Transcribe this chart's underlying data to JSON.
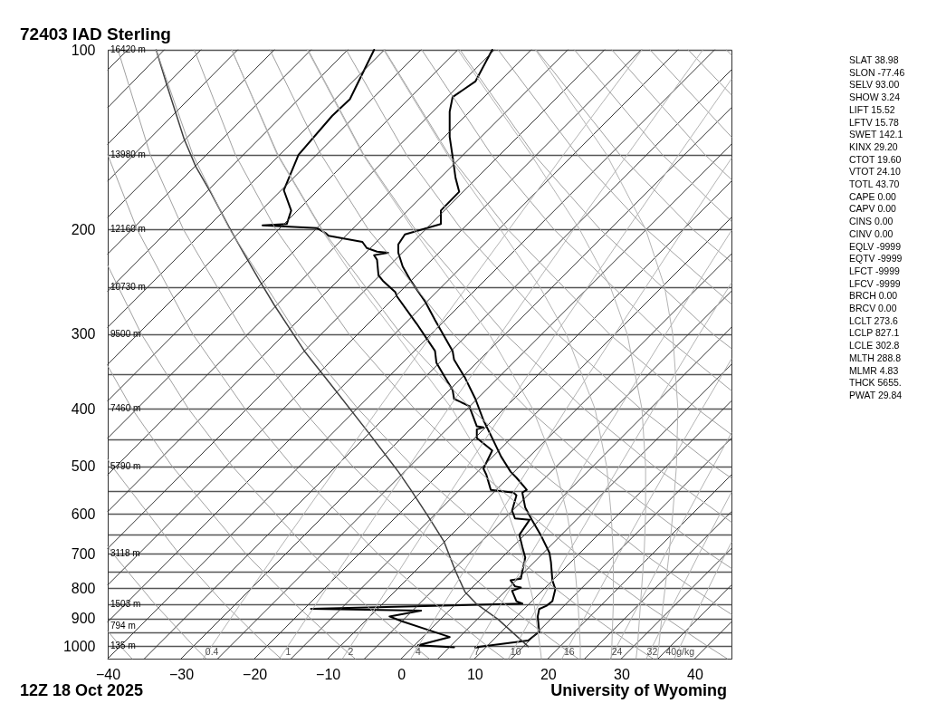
{
  "chart_data": {
    "type": "line",
    "title": "72403 IAD Sterling",
    "xlim": [
      -40,
      45
    ],
    "xticks": [
      -40,
      -30,
      -20,
      -10,
      0,
      10,
      20,
      30,
      40
    ],
    "ylim": [
      1050,
      100
    ],
    "log": "y",
    "grid": "y",
    "yticks": [
      100,
      {
        "value": 150,
        "label": null
      },
      200,
      {
        "value": 250,
        "label": null
      },
      300,
      {
        "value": 350,
        "label": null
      },
      400,
      {
        "value": 450,
        "label": null
      },
      500,
      {
        "value": 550,
        "label": null
      },
      600,
      {
        "value": 650,
        "label": null
      },
      700,
      {
        "value": 750,
        "label": null
      },
      800,
      {
        "value": 850,
        "label": null
      },
      900,
      {
        "value": 950,
        "label": null
      },
      1000
    ],
    "annotations": [
      "12Z 18 Oct 2025",
      "University of Wyoming",
      "16420 m",
      "13980 m",
      "12160 m",
      "10730 m",
      "9500 m",
      "7460 m",
      "5790 m",
      "3118 m",
      "1503 m",
      "794 m",
      "135 m",
      "SLAT 38.98",
      "SLON -77.46",
      "SELV 93.00",
      "SHOW 3.24",
      "LIFT 15.52",
      "LFTV 15.78",
      "SWET 142.1",
      "KINX 29.20",
      "CTOT 19.60",
      "VTOT 24.10",
      "TOTL 43.70",
      "CAPE 0.00",
      "CAPV 0.00",
      "CINS 0.00",
      "CINV 0.00",
      "EQLV -9999",
      "EQTV -9999",
      "LFCT -9999",
      "LFCV -9999",
      "BRCH 0.00",
      "BRCV 0.00",
      "LCLT 273.6",
      "LCLP 827.1",
      "LCLE 302.8",
      "MLTH 288.8",
      "MLMR 4.83",
      "THCK 5655.",
      "PWAT 29.84",
      {
        "text": "0.4",
        "x": -25.8,
        "y": 1000
      },
      {
        "text": "1",
        "x": -15.4,
        "y": 1000
      },
      {
        "text": "2",
        "x": -6.9,
        "y": 1000
      },
      {
        "text": "4",
        "x": 2.3,
        "y": 1000
      },
      {
        "text": "7",
        "x": 10.3,
        "y": 1000
      },
      {
        "text": "10",
        "x": 15.6,
        "y": 1000
      },
      {
        "text": "16",
        "x": 22.9,
        "y": 1000
      },
      {
        "text": "24",
        "x": 29.4,
        "y": 1000
      },
      {
        "text": "32",
        "x": 34.2,
        "y": 1000
      },
      {
        "text": "40g/kg",
        "x": 38.0,
        "y": 1000
      }
    ],
    "series": [
      {
        "color": "#000000",
        "x": [
          12.4,
          10.1,
          7.0,
          6.6,
          6.6,
          7.0,
          7.4,
          7.9,
          5.4,
          5.4,
          0.5,
          -0.4,
          -0.4,
          0.2,
          1.3,
          3.3,
          4.6,
          7.0,
          7.2,
          8.7,
          10.1,
          11.2,
          12.4,
          13.6,
          14.9,
          15.7,
          17.1,
          16.5,
          16.9,
          17.8,
          19.0,
          20.2,
          20.4,
          20.6,
          21.0,
          20.6,
          19.8,
          18.8,
          18.6,
          18.8,
          17.3,
          10.1
        ],
        "values": [
          100,
          113,
          120,
          127,
          140,
          151,
          164,
          173,
          186,
          196,
          204,
          212,
          219,
          231,
          244,
          265,
          284,
          320,
          331,
          355,
          385,
          418,
          448,
          481,
          510,
          522,
          547,
          553,
          586,
          614,
          651,
          698,
          723,
          776,
          803,
          841,
          856,
          867,
          892,
          946,
          979,
          1005
        ]
      },
      {
        "color": "#000000",
        "x": [
          -3.7,
          -7.0,
          -9.4,
          -14.0,
          -16.0,
          -15.0,
          -15.6,
          -18.9,
          -11.5,
          -10.3,
          -9.9,
          -5.3,
          -4.7,
          -3.3,
          -1.8,
          -3.7,
          -3.3,
          -3.1,
          -2.5,
          -0.8,
          -0.6,
          2.1,
          4.6,
          4.8,
          6.0,
          7.0,
          7.2,
          9.3,
          9.5,
          10.3,
          11.2,
          10.3,
          10.3,
          12.4,
          11.2,
          11.6,
          12.2,
          15.3,
          15.7,
          15.1,
          15.5,
          17.5,
          16.1,
          16.5,
          16.9,
          16.5,
          16.3,
          14.9,
          15.5,
          16.3,
          15.1,
          15.7,
          16.5,
          -12.3,
          2.7,
          -1.6,
          0.0,
          3.7,
          6.6,
          2.3,
          7.2
        ],
        "values": [
          100,
          121,
          129,
          150,
          172,
          186,
          196,
          197,
          199,
          203,
          205,
          210,
          215,
          218,
          219,
          221,
          225,
          239,
          244,
          255,
          259,
          288,
          320,
          335,
          355,
          372,
          385,
          396,
          403,
          428,
          430,
          433,
          448,
          470,
          504,
          516,
          547,
          553,
          559,
          593,
          611,
          614,
          651,
          682,
          711,
          749,
          771,
          776,
          794,
          798,
          808,
          841,
          849,
          866,
          872,
          892,
          908,
          940,
          966,
          997,
          1005
        ]
      },
      {
        "color": "#404040",
        "x": [
          17.3,
          13.2,
          10.3,
          8.7,
          7.4,
          5.8,
          3.7,
          1.3,
          -0.4,
          -4.5,
          -9.0,
          -13.2,
          -17.3,
          -19.3,
          -21.4,
          -23.5,
          -25.9,
          -28.0,
          -29.6,
          -31.9,
          -33.4
        ],
        "values": [
          1002,
          902,
          851,
          812,
          749,
          667,
          607,
          547,
          510,
          438,
          372,
          320,
          268,
          244,
          220,
          198,
          174,
          157,
          141,
          115,
          100
        ]
      },
      {
        "color": "#333333",
        "x": [
          -40,
          42.7
        ],
        "values": [
          1050,
          100
        ]
      },
      {
        "color": "#333333",
        "x": [
          -35,
          45
        ],
        "values": [
          1050,
          108
        ]
      },
      {
        "color": "#333333",
        "x": [
          -30,
          45
        ],
        "values": [
          1050,
          125
        ]
      },
      {
        "color": "#333333",
        "x": [
          -25,
          45
        ],
        "values": [
          1050,
          144
        ]
      },
      {
        "color": "#333333",
        "x": [
          -20,
          45
        ],
        "values": [
          1050,
          166
        ]
      },
      {
        "color": "#333333",
        "x": [
          -15,
          45
        ],
        "values": [
          1050,
          191
        ]
      },
      {
        "color": "#333333",
        "x": [
          -10,
          45
        ],
        "values": [
          1050,
          220
        ]
      },
      {
        "color": "#333333",
        "x": [
          -5,
          45
        ],
        "values": [
          1050,
          254
        ]
      },
      {
        "color": "#333333",
        "x": [
          0,
          45
        ],
        "values": [
          1050,
          292
        ]
      },
      {
        "color": "#333333",
        "x": [
          5,
          45
        ],
        "values": [
          1050,
          337
        ]
      },
      {
        "color": "#333333",
        "x": [
          10,
          45
        ],
        "values": [
          1050,
          388
        ]
      },
      {
        "color": "#333333",
        "x": [
          15,
          45
        ],
        "values": [
          1050,
          448
        ]
      },
      {
        "color": "#333333",
        "x": [
          20,
          45
        ],
        "values": [
          1050,
          516
        ]
      },
      {
        "color": "#333333",
        "x": [
          25,
          45
        ],
        "values": [
          1050,
          595
        ]
      },
      {
        "color": "#333333",
        "x": [
          30,
          45
        ],
        "values": [
          1050,
          686
        ]
      },
      {
        "color": "#333333",
        "x": [
          35,
          45
        ],
        "values": [
          1050,
          790
        ]
      },
      {
        "color": "#333333",
        "x": [
          40,
          45
        ],
        "values": [
          1050,
          911
        ]
      },
      {
        "color": "#333333",
        "x": [
          -40,
          37.7
        ],
        "values": [
          911,
          100
        ]
      },
      {
        "color": "#333333",
        "x": [
          -40,
          32.7
        ],
        "values": [
          790,
          100
        ]
      },
      {
        "color": "#333333",
        "x": [
          -40,
          27.7
        ],
        "values": [
          686,
          100
        ]
      },
      {
        "color": "#333333",
        "x": [
          -40,
          22.7
        ],
        "values": [
          595,
          100
        ]
      },
      {
        "color": "#333333",
        "x": [
          -40,
          17.7
        ],
        "values": [
          516,
          100
        ]
      },
      {
        "color": "#333333",
        "x": [
          -40,
          12.7
        ],
        "values": [
          448,
          100
        ]
      },
      {
        "color": "#333333",
        "x": [
          -40,
          7.7
        ],
        "values": [
          388,
          100
        ]
      },
      {
        "color": "#333333",
        "x": [
          -40,
          2.7
        ],
        "values": [
          337,
          100
        ]
      },
      {
        "color": "#333333",
        "x": [
          -40,
          -2.3
        ],
        "values": [
          292,
          100
        ]
      },
      {
        "color": "#333333",
        "x": [
          -40,
          -7.3
        ],
        "values": [
          254,
          100
        ]
      },
      {
        "color": "#333333",
        "x": [
          -40,
          -12.3
        ],
        "values": [
          220,
          100
        ]
      },
      {
        "color": "#333333",
        "x": [
          -40,
          -17.3
        ],
        "values": [
          191,
          100
        ]
      },
      {
        "color": "#333333",
        "x": [
          -40,
          -22.3
        ],
        "values": [
          166,
          100
        ]
      },
      {
        "color": "#333333",
        "x": [
          -40,
          -27.3
        ],
        "values": [
          144,
          100
        ]
      },
      {
        "color": "#333333",
        "x": [
          -40,
          -32.3
        ],
        "values": [
          125,
          100
        ]
      },
      {
        "color": "#333333",
        "x": [
          -40,
          -37.3
        ],
        "values": [
          108,
          100
        ]
      },
      {
        "color": "#a0a0a0",
        "x": [
          -36.7,
          -38.3,
          -40
        ],
        "values": [
          1050,
          1000,
          944
        ]
      },
      {
        "color": "#a0a0a0",
        "x": [
          -26.6,
          -28.3,
          -33.6,
          -39.3,
          -40
        ],
        "values": [
          1050,
          1000,
          850,
          700,
          680
        ]
      },
      {
        "color": "#a0a0a0",
        "x": [
          -16.4,
          -18.3,
          -24.1,
          -30.3,
          -39.4,
          -40
        ],
        "values": [
          1050,
          1000,
          850,
          700,
          500,
          486
        ]
      },
      {
        "color": "#a0a0a0",
        "x": [
          -6.3,
          -8.3,
          -14.5,
          -21.2,
          -31.2,
          -36.7,
          -40
        ],
        "values": [
          1050,
          1000,
          850,
          700,
          500,
          400,
          339
        ]
      },
      {
        "color": "#a0a0a0",
        "x": [
          3.8,
          1.7,
          -5.0,
          -12.2,
          -23.0,
          -29.0,
          -35.4,
          -40
        ],
        "values": [
          1050,
          1000,
          850,
          700,
          500,
          400,
          300,
          230
        ]
      },
      {
        "color": "#a0a0a0",
        "x": [
          14.0,
          11.7,
          4.6,
          -3.2,
          -14.8,
          -21.3,
          -28.4,
          -36.0,
          -40
        ],
        "values": [
          1050,
          1000,
          850,
          700,
          500,
          400,
          300,
          200,
          150
        ]
      },
      {
        "color": "#a0a0a0",
        "x": [
          24.1,
          21.7,
          14.1,
          5.9,
          -6.6,
          -13.6,
          -21.3,
          -29.7,
          -34.2,
          -38.6
        ],
        "values": [
          1050,
          1000,
          850,
          700,
          500,
          400,
          300,
          200,
          150,
          100
        ]
      },
      {
        "color": "#a0a0a0",
        "x": [
          34.3,
          31.7,
          23.7,
          14.9,
          1.6,
          -5.9,
          -14.2,
          -23.4,
          -28.4,
          -33.4
        ],
        "values": [
          1050,
          1000,
          850,
          700,
          500,
          400,
          300,
          200,
          150,
          100
        ]
      },
      {
        "color": "#a0a0a0",
        "x": [
          44.4,
          41.7,
          33.2,
          23.9,
          9.8,
          1.8,
          -7.1,
          -17.1,
          -22.6,
          -28.2
        ],
        "values": [
          1050,
          1000,
          850,
          700,
          500,
          400,
          300,
          200,
          150,
          100
        ]
      },
      {
        "color": "#a0a0a0",
        "x": [
          45,
          42.8,
          33.0,
          18.0,
          9.5,
          0.0,
          -10.8,
          -16.8,
          -23.1
        ],
        "values": [
          885,
          850,
          700,
          500,
          400,
          300,
          200,
          150,
          100
        ]
      },
      {
        "color": "#a0a0a0",
        "x": [
          45,
          42.0,
          26.2,
          17.2,
          7.1,
          -4.5,
          -10.9,
          -17.9
        ],
        "values": [
          741,
          700,
          500,
          400,
          300,
          200,
          150,
          100
        ]
      },
      {
        "color": "#a0a0a0",
        "x": [
          45,
          34.5,
          24.9,
          14.2,
          1.9,
          -5.1,
          -12.7
        ],
        "values": [
          620,
          500,
          400,
          300,
          200,
          150,
          100
        ]
      },
      {
        "color": "#a0a0a0",
        "x": [
          45,
          42.7,
          32.6,
          21.3,
          8.2,
          0.7,
          -7.5
        ],
        "values": [
          523,
          500,
          400,
          300,
          200,
          150,
          100
        ]
      },
      {
        "color": "#a0a0a0",
        "x": [
          45,
          40.3,
          28.4,
          14.5,
          6.5,
          -2.3
        ],
        "values": [
          442,
          400,
          300,
          200,
          150,
          100
        ]
      },
      {
        "color": "#a0a0a0",
        "x": [
          45,
          35.5,
          20.8,
          12.3,
          2.8
        ],
        "values": [
          373,
          300,
          200,
          150,
          100
        ]
      },
      {
        "color": "#a0a0a0",
        "x": [
          45,
          42.5,
          27.1,
          18.1,
          8.0
        ],
        "values": [
          317,
          300,
          200,
          150,
          100
        ]
      },
      {
        "color": "#a0a0a0",
        "x": [
          45,
          33.4,
          24.0,
          13.2
        ],
        "values": [
          267,
          200,
          150,
          100
        ]
      },
      {
        "color": "#a0a0a0",
        "x": [
          45,
          39.7,
          29.8,
          18.4
        ],
        "values": [
          227,
          200,
          150,
          100
        ]
      },
      {
        "color": "#a0a0a0",
        "x": [
          45,
          35.6,
          23.6
        ],
        "values": [
          194,
          150,
          100
        ]
      },
      {
        "color": "#a0a0a0",
        "x": [
          45,
          41.4,
          28.7
        ],
        "values": [
          165,
          150,
          100
        ]
      },
      {
        "color": "#a0a0a0",
        "x": [
          45,
          33.9
        ],
        "values": [
          140,
          100
        ]
      },
      {
        "color": "#a0a0a0",
        "x": [
          45,
          39.1
        ],
        "values": [
          119,
          100
        ]
      },
      {
        "color": "#a0a0a0",
        "x": [
          45,
          44.3
        ],
        "values": [
          102,
          100
        ]
      },
      {
        "color": "#b4b4b4",
        "x": [
          19.1,
          18.9,
          18.1,
          16.5,
          14.6,
          11.6,
          6.9,
          -0.7,
          -5.6,
          -10.9,
          -16.9,
          -23.1
        ],
        "values": [
          1050,
          1000,
          850,
          700,
          600,
          500,
          400,
          300,
          250,
          200,
          150,
          100
        ]
      },
      {
        "color": "#b4b4b4",
        "x": [
          24.4,
          24.4,
          24.1,
          23.5,
          22.6,
          21.0,
          17.9,
          12.0,
          7.3,
          1.6,
          -5.2,
          -12.8
        ],
        "values": [
          1050,
          1000,
          850,
          700,
          600,
          500,
          400,
          300,
          250,
          200,
          150,
          100
        ]
      },
      {
        "color": "#b4b4b4",
        "x": [
          28.6,
          28.7,
          28.9,
          28.9,
          28.6,
          28.0,
          26.4,
          22.5,
          18.9,
          13.5,
          6.3,
          -2.4
        ],
        "values": [
          1050,
          1000,
          850,
          700,
          600,
          500,
          400,
          300,
          250,
          200,
          150,
          100
        ]
      },
      {
        "color": "#b4b4b4",
        "x": [
          32.0,
          32.2,
          32.6,
          33.1,
          33.3,
          33.3,
          32.8,
          30.8,
          28.5,
          24.3,
          17.7,
          7.7
        ],
        "values": [
          1050,
          1000,
          850,
          700,
          600,
          500,
          400,
          300,
          250,
          200,
          150,
          100
        ]
      },
      {
        "color": "#b4b4b4",
        "x": [
          34.9,
          35.1,
          35.7,
          36.5,
          37.0,
          37.5,
          37.7,
          37.0,
          35.9,
          33.3,
          28.0,
          18.3
        ],
        "values": [
          1050,
          1000,
          850,
          700,
          600,
          500,
          400,
          300,
          250,
          200,
          150,
          100
        ]
      },
      {
        "color": "#b4b4b4",
        "x": [
          -27.0,
          -21.9,
          -17.1,
          -8.7,
          -3.1,
          4.2,
          14.7,
          22.1,
          32.8
        ],
        "values": [
          1050,
          850,
          700,
          500,
          400,
          300,
          200,
          150,
          100
        ]
      },
      {
        "color": "#b4b4b4",
        "x": [
          -16.6,
          -11.6,
          -7.0,
          1.0,
          6.4,
          13.5,
          23.5,
          30.8,
          41.1
        ],
        "values": [
          1050,
          850,
          700,
          500,
          400,
          300,
          200,
          150,
          100
        ]
      },
      {
        "color": "#b4b4b4",
        "x": [
          -8.0,
          -3.2,
          1.2,
          9.0,
          14.2,
          21.0,
          30.8,
          37.8,
          45
        ],
        "values": [
          1050,
          850,
          700,
          500,
          400,
          300,
          200,
          150,
          112
        ]
      },
      {
        "color": "#b4b4b4",
        "x": [
          1.3,
          5.8,
          10.0,
          17.5,
          22.5,
          29.1,
          38.5,
          45
        ],
        "values": [
          1050,
          850,
          700,
          500,
          400,
          300,
          200,
          152
        ]
      },
      {
        "color": "#b4b4b4",
        "x": [
          9.3,
          13.6,
          17.7,
          24.8,
          29.7,
          36.0,
          45
        ],
        "values": [
          1050,
          850,
          700,
          500,
          400,
          300,
          201
        ]
      },
      {
        "color": "#b4b4b4",
        "x": [
          14.6,
          18.8,
          22.7,
          29.7,
          34.4,
          40.6,
          45
        ],
        "values": [
          1050,
          850,
          700,
          500,
          400,
          300,
          246
        ]
      },
      {
        "color": "#b4b4b4",
        "x": [
          21.9,
          26.0,
          29.7,
          36.4,
          41.0,
          45
        ],
        "values": [
          1050,
          850,
          700,
          500,
          400,
          330
        ]
      },
      {
        "color": "#b4b4b4",
        "x": [
          28.5,
          32.4,
          36.0,
          42.5,
          45
        ],
        "values": [
          1050,
          850,
          700,
          500,
          439
        ]
      },
      {
        "color": "#b4b4b4",
        "x": [
          33.4,
          37.1,
          40.6,
          45
        ],
        "values": [
          1050,
          850,
          700,
          552
        ]
      },
      {
        "color": "#b4b4b4",
        "x": [
          37.2,
          40.8,
          44.2,
          45
        ],
        "values": [
          1050,
          850,
          700,
          670
        ]
      }
    ]
  }
}
